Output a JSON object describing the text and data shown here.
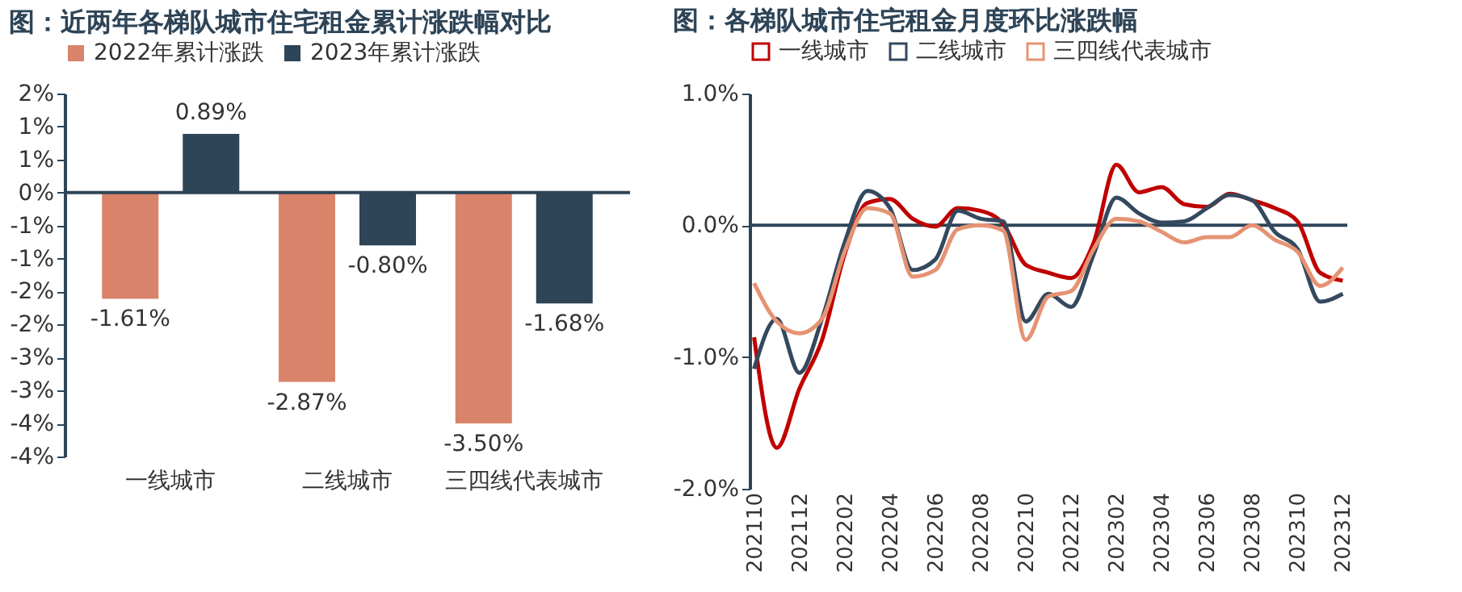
{
  "chart_data": [
    {
      "type": "bar",
      "title": "图：近两年各梯队城市住宅租金累计涨跌幅对比",
      "categories": [
        "一线城市",
        "二线城市",
        "三四线代表城市"
      ],
      "series": [
        {
          "name": "2022年累计涨跌",
          "color": "#d9846a",
          "values": [
            -1.61,
            -2.87,
            -3.5
          ],
          "value_labels": [
            "-1.61%",
            "-2.87%",
            "-3.50%"
          ]
        },
        {
          "name": "2023年累计涨跌",
          "color": "#2e4457",
          "values": [
            0.89,
            -0.8,
            -1.68
          ],
          "value_labels": [
            "0.89%",
            "-0.80%",
            "-1.68%"
          ]
        }
      ],
      "ylim": [
        -4,
        1.5
      ],
      "yticks": [
        {
          "value": 1.5,
          "label": "2%"
        },
        {
          "value": 1,
          "label": "1%"
        },
        {
          "value": 0.5,
          "label": "1%"
        },
        {
          "value": 0,
          "label": "0%"
        },
        {
          "value": -0.5,
          "label": "-1%"
        },
        {
          "value": -1,
          "label": "-1%"
        },
        {
          "value": -1.5,
          "label": "-2%"
        },
        {
          "value": -2,
          "label": "-2%"
        },
        {
          "value": -2.5,
          "label": "-3%"
        },
        {
          "value": -3,
          "label": "-3%"
        },
        {
          "value": -3.5,
          "label": "-4%"
        },
        {
          "value": -4,
          "label": "-4%"
        }
      ],
      "legend": "top",
      "grid": false
    },
    {
      "type": "line",
      "title": "图：各梯队城市住宅租金月度环比涨跌幅",
      "categories": [
        "202110",
        null,
        "202112",
        null,
        "202202",
        null,
        "202204",
        null,
        "202206",
        null,
        "202208",
        null,
        "202210",
        null,
        "202212",
        null,
        "202302",
        null,
        "202304",
        null,
        "202306",
        null,
        "202308",
        null,
        "202310",
        null,
        "202312"
      ],
      "series": [
        {
          "name": "一线城市",
          "color": "#c00000",
          "values": [
            -0.85,
            -1.69,
            -1.24,
            -0.87,
            -0.22,
            0.17,
            0.2,
            0.05,
            -0.01,
            0.13,
            0.11,
            0.01,
            -0.3,
            -0.36,
            -0.4,
            -0.13,
            0.46,
            0.25,
            0.29,
            0.16,
            0.14,
            0.24,
            0.19,
            0.13,
            0.03,
            -0.36,
            -0.42
          ]
        },
        {
          "name": "二线城市",
          "color": "#34495e",
          "values": [
            -1.09,
            -0.71,
            -1.12,
            -0.71,
            -0.13,
            0.26,
            0.13,
            -0.34,
            -0.26,
            0.11,
            0.05,
            0.03,
            -0.73,
            -0.52,
            -0.62,
            -0.22,
            0.21,
            0.09,
            0.02,
            0.03,
            0.13,
            0.23,
            0.19,
            -0.05,
            -0.18,
            -0.58,
            -0.52
          ]
        },
        {
          "name": "三四线代表城市",
          "color": "#e69373",
          "values": [
            -0.44,
            -0.73,
            -0.82,
            -0.71,
            -0.2,
            0.13,
            0.09,
            -0.39,
            -0.34,
            -0.03,
            0,
            -0.04,
            -0.87,
            -0.54,
            -0.5,
            -0.18,
            0.05,
            0.03,
            -0.05,
            -0.13,
            -0.09,
            -0.09,
            0,
            -0.11,
            -0.2,
            -0.46,
            -0.32
          ]
        }
      ],
      "ylim": [
        -2,
        1
      ],
      "yticks": [
        {
          "value": 1,
          "label": "1.0%"
        },
        {
          "value": 0,
          "label": "0.0%"
        },
        {
          "value": -1,
          "label": "-1.0%"
        },
        {
          "value": -2,
          "label": "-2.0%"
        }
      ],
      "legend": "top",
      "grid": false,
      "line_style": "solid"
    }
  ]
}
